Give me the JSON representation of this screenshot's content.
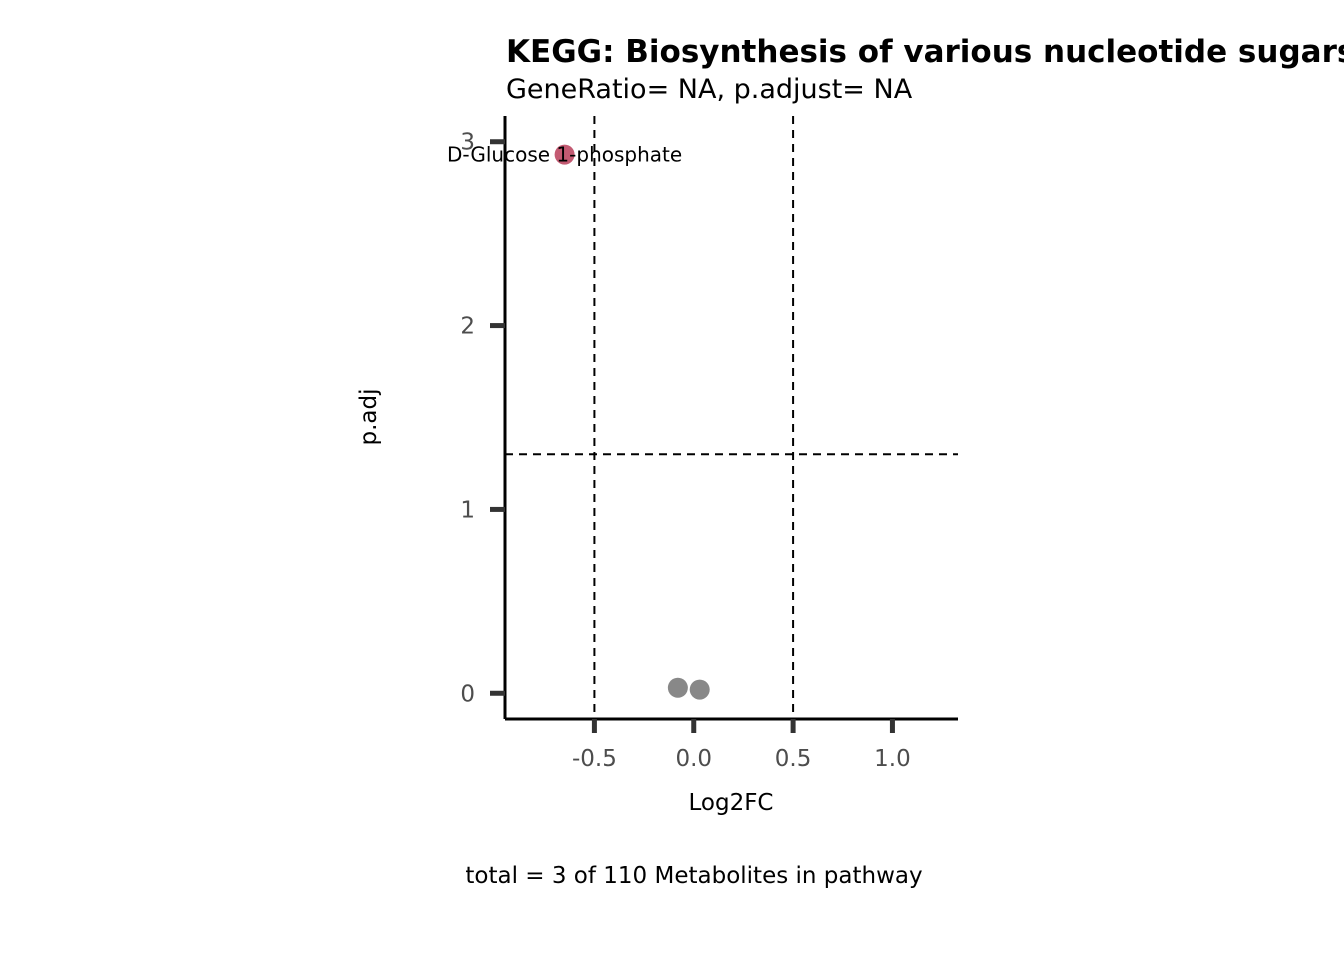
{
  "chart_data": {
    "type": "scatter",
    "title": "KEGG: Biosynthesis of various nucleotide sugars",
    "subtitle": "GeneRatio= NA, p.adjust= NA",
    "xlabel": "Log2FC",
    "ylabel": "p.adj",
    "caption": "total = 3 of 110 Metabolites in pathway",
    "xlim": [
      -0.95,
      1.33
    ],
    "ylim": [
      -0.14,
      3.14
    ],
    "x_ticks": [
      {
        "value": -0.5,
        "label": "-0.5"
      },
      {
        "value": 0.0,
        "label": "0.0"
      },
      {
        "value": 0.5,
        "label": "0.5"
      },
      {
        "value": 1.0,
        "label": "1.0"
      }
    ],
    "y_ticks": [
      {
        "value": 0,
        "label": "0"
      },
      {
        "value": 1,
        "label": "1"
      },
      {
        "value": 2,
        "label": "2"
      },
      {
        "value": 3,
        "label": "3"
      }
    ],
    "reference_lines": {
      "vertical": [
        -0.5,
        0.5
      ],
      "horizontal": [
        1.3
      ]
    },
    "colors": {
      "significant": "#c35a72",
      "not_significant": "#888888",
      "axis": "#000000",
      "tick": "#333333"
    },
    "points": [
      {
        "x": -0.65,
        "y": 2.93,
        "label": "D-Glucose 1-phosphate",
        "status": "significant"
      },
      {
        "x": -0.08,
        "y": 0.03,
        "label": "",
        "status": "not_significant"
      },
      {
        "x": 0.03,
        "y": 0.02,
        "label": "",
        "status": "not_significant"
      }
    ]
  }
}
